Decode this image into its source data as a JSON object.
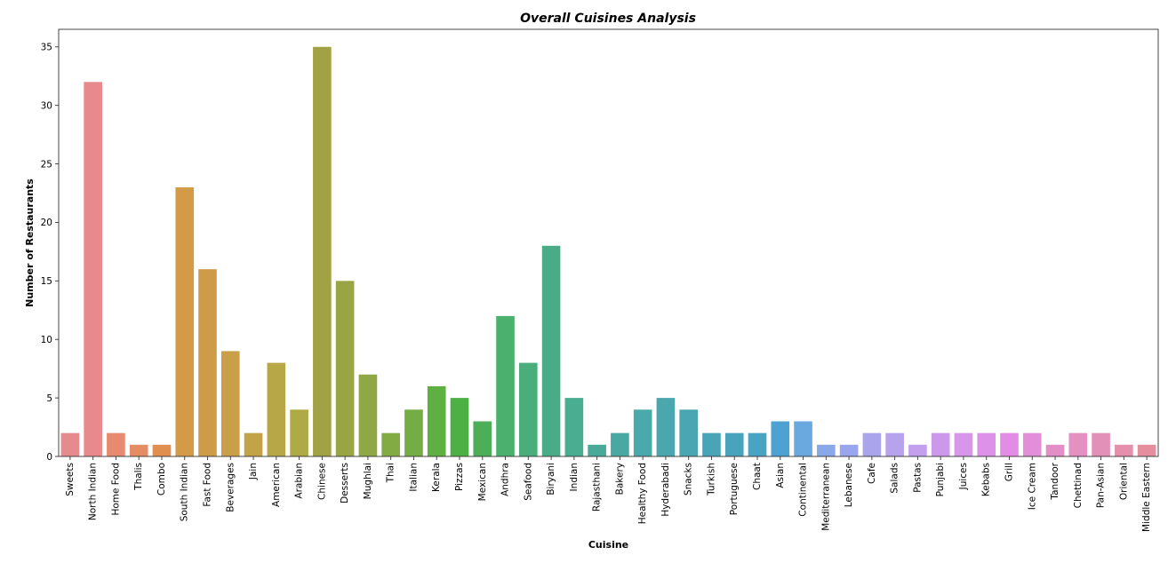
{
  "chart_data": {
    "type": "bar",
    "title": "Overall Cuisines Analysis",
    "xlabel": "Cuisine",
    "ylabel": "Number of Restaurants",
    "ylim": [
      0,
      36.5
    ],
    "yticks": [
      0,
      5,
      10,
      15,
      20,
      25,
      30,
      35
    ],
    "grid": false,
    "legend": "none",
    "categories": [
      "Sweets",
      "North Indian",
      "Home Food",
      "Thalis",
      "Combo",
      "South Indian",
      "Fast Food",
      "Beverages",
      "Jain",
      "American",
      "Arabian",
      "Chinese",
      "Desserts",
      "Mughlai",
      "Thai",
      "Italian",
      "Kerala",
      "Pizzas",
      "Mexican",
      "Andhra",
      "Seafood",
      "Biryani",
      "Indian",
      "Rajasthani",
      "Bakery",
      "Healthy Food",
      "Hyderabadi",
      "Snacks",
      "Turkish",
      "Portuguese",
      "Chaat",
      "Asian",
      "Continental",
      "Mediterranean",
      "Lebanese",
      "Cafe",
      "Salads",
      "Pastas",
      "Punjabi",
      "Juices",
      "Kebabs",
      "Grill",
      "Ice Cream",
      "Tandoor",
      "Chettinad",
      "Pan-Asian",
      "Oriental",
      "Middle Eastern"
    ],
    "values": [
      2,
      32,
      2,
      1,
      1,
      23,
      16,
      9,
      2,
      8,
      4,
      35,
      15,
      7,
      2,
      4,
      6,
      5,
      3,
      12,
      8,
      18,
      5,
      1,
      2,
      4,
      5,
      4,
      2,
      2,
      2,
      3,
      3,
      1,
      1,
      2,
      2,
      1,
      2,
      2,
      2,
      2,
      2,
      1,
      2,
      2,
      1,
      1
    ],
    "colors": [
      "#e58b8e",
      "#e8898d",
      "#e68b70",
      "#e48c62",
      "#e08f4e",
      "#d39a48",
      "#ce9c48",
      "#c99f48",
      "#c2a347",
      "#b7a747",
      "#aeaa46",
      "#a1a146",
      "#99a545",
      "#8fa845",
      "#82ab44",
      "#73ad44",
      "#5fb042",
      "#4db045",
      "#4cae59",
      "#4baf6e",
      "#4aae7c",
      "#4aac87",
      "#4aac91",
      "#49aa9a",
      "#49a8a2",
      "#4aa9a9",
      "#4ba7ae",
      "#4aa6b3",
      "#4aa4b8",
      "#4aa3bc",
      "#4aa3c2",
      "#4ea2d3",
      "#6aa8e0",
      "#88a8ea",
      "#99a6ed",
      "#aaa4ed",
      "#b7a2ed",
      "#c39fed",
      "#cc99ea",
      "#d696ea",
      "#de91e8",
      "#e28ce6",
      "#e38ed9",
      "#e48ec8",
      "#e490c1",
      "#e290b8",
      "#e48fab",
      "#e58e9e"
    ]
  }
}
